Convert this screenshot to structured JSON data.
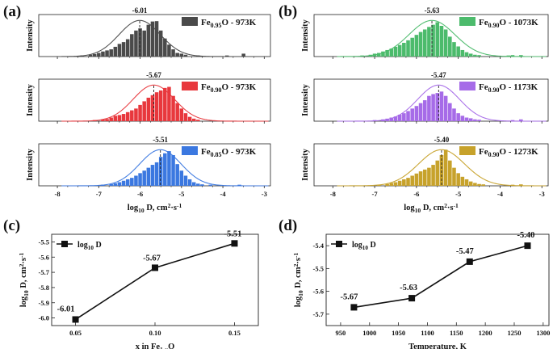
{
  "panels": {
    "a": {
      "label": "(a)"
    },
    "b": {
      "label": "(b)"
    },
    "c": {
      "label": "(c)"
    },
    "d": {
      "label": "(d)"
    }
  },
  "chart_data": [
    {
      "id": "a",
      "type": "histogram",
      "ylabel": "Intensity",
      "xlabel": "log₁₀ D, cm²·s⁻¹",
      "xlim": [
        -8.45,
        -2.85
      ],
      "xticks": [
        "-8",
        "-7",
        "-6",
        "-5",
        "-4",
        "-3"
      ],
      "bin_width": 0.1,
      "subplots": [
        {
          "legend": "Fe0.95O - 973K",
          "legend_base": "Fe",
          "legend_sub": "0.95",
          "legend_rest": "O - 973K",
          "color": "#4a4a4a",
          "mean": -6.01,
          "mean_label": "-6.01",
          "sigma": 0.5,
          "bins": [
            [
              -7.4,
              0.03
            ],
            [
              -7.2,
              0.05
            ],
            [
              -7.1,
              0.07
            ],
            [
              -7.0,
              0.1
            ],
            [
              -6.9,
              0.14
            ],
            [
              -6.8,
              0.17
            ],
            [
              -6.7,
              0.2
            ],
            [
              -6.6,
              0.27
            ],
            [
              -6.5,
              0.35
            ],
            [
              -6.4,
              0.4
            ],
            [
              -6.3,
              0.48
            ],
            [
              -6.2,
              0.62
            ],
            [
              -6.1,
              0.72
            ],
            [
              -6.0,
              0.78
            ],
            [
              -5.9,
              0.72
            ],
            [
              -5.8,
              0.88
            ],
            [
              -5.7,
              0.97
            ],
            [
              -5.6,
              0.98
            ],
            [
              -5.5,
              0.72
            ],
            [
              -5.4,
              0.5
            ],
            [
              -5.3,
              0.33
            ],
            [
              -5.2,
              0.2
            ],
            [
              -5.1,
              0.1
            ],
            [
              -5.0,
              0.08
            ],
            [
              -4.9,
              0.05
            ],
            [
              -4.6,
              0.03
            ],
            [
              -3.9,
              0.03
            ],
            [
              -3.5,
              0.08
            ]
          ]
        },
        {
          "legend": "Fe0.90O - 973K",
          "legend_base": "Fe",
          "legend_sub": "0.90",
          "legend_rest": "O - 973K",
          "color": "#e8383d",
          "mean": -5.67,
          "mean_label": "-5.67",
          "sigma": 0.5,
          "bins": [
            [
              -7.1,
              0.03
            ],
            [
              -6.9,
              0.05
            ],
            [
              -6.8,
              0.06
            ],
            [
              -6.7,
              0.1
            ],
            [
              -6.6,
              0.15
            ],
            [
              -6.5,
              0.17
            ],
            [
              -6.4,
              0.2
            ],
            [
              -6.3,
              0.25
            ],
            [
              -6.2,
              0.3
            ],
            [
              -6.1,
              0.35
            ],
            [
              -6.0,
              0.45
            ],
            [
              -5.9,
              0.55
            ],
            [
              -5.8,
              0.65
            ],
            [
              -5.7,
              0.72
            ],
            [
              -5.6,
              0.8
            ],
            [
              -5.5,
              0.85
            ],
            [
              -5.4,
              0.92
            ],
            [
              -5.3,
              0.95
            ],
            [
              -5.2,
              0.7
            ],
            [
              -5.1,
              0.5
            ],
            [
              -5.0,
              0.35
            ],
            [
              -4.9,
              0.22
            ],
            [
              -4.8,
              0.12
            ],
            [
              -4.7,
              0.07
            ],
            [
              -4.6,
              0.04
            ]
          ]
        },
        {
          "legend": "Fe0.85O - 973K",
          "legend_base": "Fe",
          "legend_sub": "0.85",
          "legend_rest": "O - 973K",
          "color": "#3b78e0",
          "mean": -5.51,
          "mean_label": "-5.51",
          "sigma": 0.5,
          "bins": [
            [
              -6.9,
              0.03
            ],
            [
              -6.7,
              0.05
            ],
            [
              -6.6,
              0.07
            ],
            [
              -6.5,
              0.1
            ],
            [
              -6.4,
              0.14
            ],
            [
              -6.3,
              0.18
            ],
            [
              -6.2,
              0.22
            ],
            [
              -6.1,
              0.28
            ],
            [
              -6.0,
              0.35
            ],
            [
              -5.9,
              0.42
            ],
            [
              -5.8,
              0.5
            ],
            [
              -5.7,
              0.58
            ],
            [
              -5.6,
              0.65
            ],
            [
              -5.5,
              0.8
            ],
            [
              -5.4,
              0.9
            ],
            [
              -5.3,
              0.96
            ],
            [
              -5.2,
              0.85
            ],
            [
              -5.1,
              0.6
            ],
            [
              -5.0,
              0.42
            ],
            [
              -4.9,
              0.28
            ],
            [
              -4.8,
              0.18
            ],
            [
              -4.7,
              0.1
            ],
            [
              -4.6,
              0.06
            ],
            [
              -4.5,
              0.04
            ],
            [
              -4.3,
              0.03
            ],
            [
              -3.6,
              0.03
            ]
          ]
        }
      ]
    },
    {
      "id": "b",
      "type": "histogram",
      "ylabel": "Intensity",
      "xlabel": "log₁₀ D, cm²·s⁻¹",
      "xlim": [
        -8.45,
        -2.85
      ],
      "xticks": [
        "-8",
        "-7",
        "-6",
        "-5",
        "-4",
        "-3"
      ],
      "bin_width": 0.1,
      "subplots": [
        {
          "legend": "Fe0.90O - 1073K",
          "legend_base": "Fe",
          "legend_sub": "0.90",
          "legend_rest": "O - 1073K",
          "color": "#4cbb6c",
          "mean": -5.63,
          "mean_label": "-5.63",
          "sigma": 0.55,
          "bins": [
            [
              -7.3,
              0.03
            ],
            [
              -7.1,
              0.05
            ],
            [
              -7.0,
              0.08
            ],
            [
              -6.9,
              0.1
            ],
            [
              -6.8,
              0.14
            ],
            [
              -6.7,
              0.18
            ],
            [
              -6.6,
              0.22
            ],
            [
              -6.5,
              0.27
            ],
            [
              -6.4,
              0.32
            ],
            [
              -6.3,
              0.38
            ],
            [
              -6.2,
              0.45
            ],
            [
              -6.1,
              0.52
            ],
            [
              -6.0,
              0.6
            ],
            [
              -5.9,
              0.68
            ],
            [
              -5.8,
              0.75
            ],
            [
              -5.7,
              0.82
            ],
            [
              -5.6,
              0.88
            ],
            [
              -5.5,
              0.95
            ],
            [
              -5.4,
              0.85
            ],
            [
              -5.3,
              0.75
            ],
            [
              -5.2,
              0.55
            ],
            [
              -5.1,
              0.4
            ],
            [
              -5.0,
              0.28
            ],
            [
              -4.9,
              0.18
            ],
            [
              -4.8,
              0.12
            ],
            [
              -4.7,
              0.08
            ],
            [
              -4.6,
              0.05
            ],
            [
              -4.5,
              0.04
            ],
            [
              -3.8,
              0.03
            ],
            [
              -3.7,
              0.04
            ],
            [
              -3.5,
              0.04
            ]
          ]
        },
        {
          "legend": "Fe0.90O - 1173K",
          "legend_base": "Fe",
          "legend_sub": "0.90",
          "legend_rest": "O - 1173K",
          "color": "#a66be8",
          "mean": -5.47,
          "mean_label": "-5.47",
          "sigma": 0.5,
          "bins": [
            [
              -7.0,
              0.03
            ],
            [
              -6.8,
              0.05
            ],
            [
              -6.7,
              0.07
            ],
            [
              -6.6,
              0.1
            ],
            [
              -6.5,
              0.13
            ],
            [
              -6.4,
              0.18
            ],
            [
              -6.3,
              0.22
            ],
            [
              -6.2,
              0.28
            ],
            [
              -6.1,
              0.35
            ],
            [
              -6.0,
              0.42
            ],
            [
              -5.9,
              0.5
            ],
            [
              -5.8,
              0.58
            ],
            [
              -5.7,
              0.7
            ],
            [
              -5.6,
              0.75
            ],
            [
              -5.5,
              0.78
            ],
            [
              -5.4,
              0.82
            ],
            [
              -5.3,
              0.7
            ],
            [
              -5.2,
              0.5
            ],
            [
              -5.1,
              0.35
            ],
            [
              -5.0,
              0.22
            ],
            [
              -4.9,
              0.15
            ],
            [
              -4.8,
              0.1
            ],
            [
              -4.7,
              0.08
            ],
            [
              -4.6,
              0.05
            ],
            [
              -4.5,
              0.04
            ],
            [
              -3.7,
              0.03
            ],
            [
              -3.5,
              0.05
            ]
          ]
        },
        {
          "legend": "Fe0.90O - 1273K",
          "legend_base": "Fe",
          "legend_sub": "0.90",
          "legend_rest": "O - 1273K",
          "color": "#c7a22b",
          "mean": -5.4,
          "mean_label": "-5.40",
          "sigma": 0.55,
          "bins": [
            [
              -6.9,
              0.03
            ],
            [
              -6.7,
              0.05
            ],
            [
              -6.6,
              0.08
            ],
            [
              -6.5,
              0.1
            ],
            [
              -6.4,
              0.14
            ],
            [
              -6.3,
              0.18
            ],
            [
              -6.2,
              0.22
            ],
            [
              -6.1,
              0.28
            ],
            [
              -6.0,
              0.34
            ],
            [
              -5.9,
              0.4
            ],
            [
              -5.8,
              0.45
            ],
            [
              -5.7,
              0.5
            ],
            [
              -5.6,
              0.58
            ],
            [
              -5.5,
              0.7
            ],
            [
              -5.4,
              0.85
            ],
            [
              -5.3,
              1.0
            ],
            [
              -5.2,
              0.7
            ],
            [
              -5.1,
              0.5
            ],
            [
              -5.0,
              0.35
            ],
            [
              -4.9,
              0.25
            ],
            [
              -4.8,
              0.18
            ],
            [
              -4.7,
              0.12
            ],
            [
              -4.6,
              0.08
            ],
            [
              -4.5,
              0.05
            ],
            [
              -4.4,
              0.04
            ],
            [
              -3.7,
              0.03
            ],
            [
              -3.5,
              0.04
            ]
          ]
        }
      ]
    },
    {
      "id": "c",
      "type": "line",
      "series": [
        {
          "name": "log10 D",
          "x": [
            0.05,
            0.1,
            0.15
          ],
          "y": [
            -6.01,
            -5.67,
            -5.51
          ],
          "labels": [
            "-6.01",
            "-5.67",
            "-5.51"
          ]
        }
      ],
      "legend": "log10 D",
      "xlabel": "x in Fe1-xO",
      "ylabel": "log10 D, cm²·s⁻¹",
      "xlim": [
        0.035,
        0.165
      ],
      "ylim": [
        -6.05,
        -5.45
      ],
      "xticks": [
        0.05,
        0.1,
        0.15
      ],
      "xtick_labels": [
        "0.05",
        "0.10",
        "0.15"
      ],
      "yticks": [
        -6.0,
        -5.9,
        -5.8,
        -5.7,
        -5.6,
        -5.5
      ],
      "ytick_labels": [
        "-6.0",
        "-5.9",
        "-5.8",
        "-5.7",
        "-5.6",
        "-5.5"
      ]
    },
    {
      "id": "d",
      "type": "line",
      "series": [
        {
          "name": "log10 D",
          "x": [
            973,
            1073,
            1173,
            1273
          ],
          "y": [
            -5.67,
            -5.63,
            -5.47,
            -5.4
          ],
          "labels": [
            "-5.67",
            "-5.63",
            "-5.47",
            "-5.40"
          ]
        }
      ],
      "legend": "log10 D",
      "xlabel": "Temperature, K",
      "ylabel": "log10 D, cm²·s⁻¹",
      "xlim": [
        925,
        1310
      ],
      "ylim": [
        -5.75,
        -5.35
      ],
      "xticks": [
        950,
        1000,
        1050,
        1100,
        1150,
        1200,
        1250,
        1300
      ],
      "xtick_labels": [
        "950",
        "1000",
        "1050",
        "1100",
        "1150",
        "1200",
        "1250",
        "1300"
      ],
      "yticks": [
        -5.7,
        -5.6,
        -5.5,
        -5.4
      ],
      "ytick_labels": [
        "-5.7",
        "-5.6",
        "-5.5",
        "-5.4"
      ]
    }
  ]
}
